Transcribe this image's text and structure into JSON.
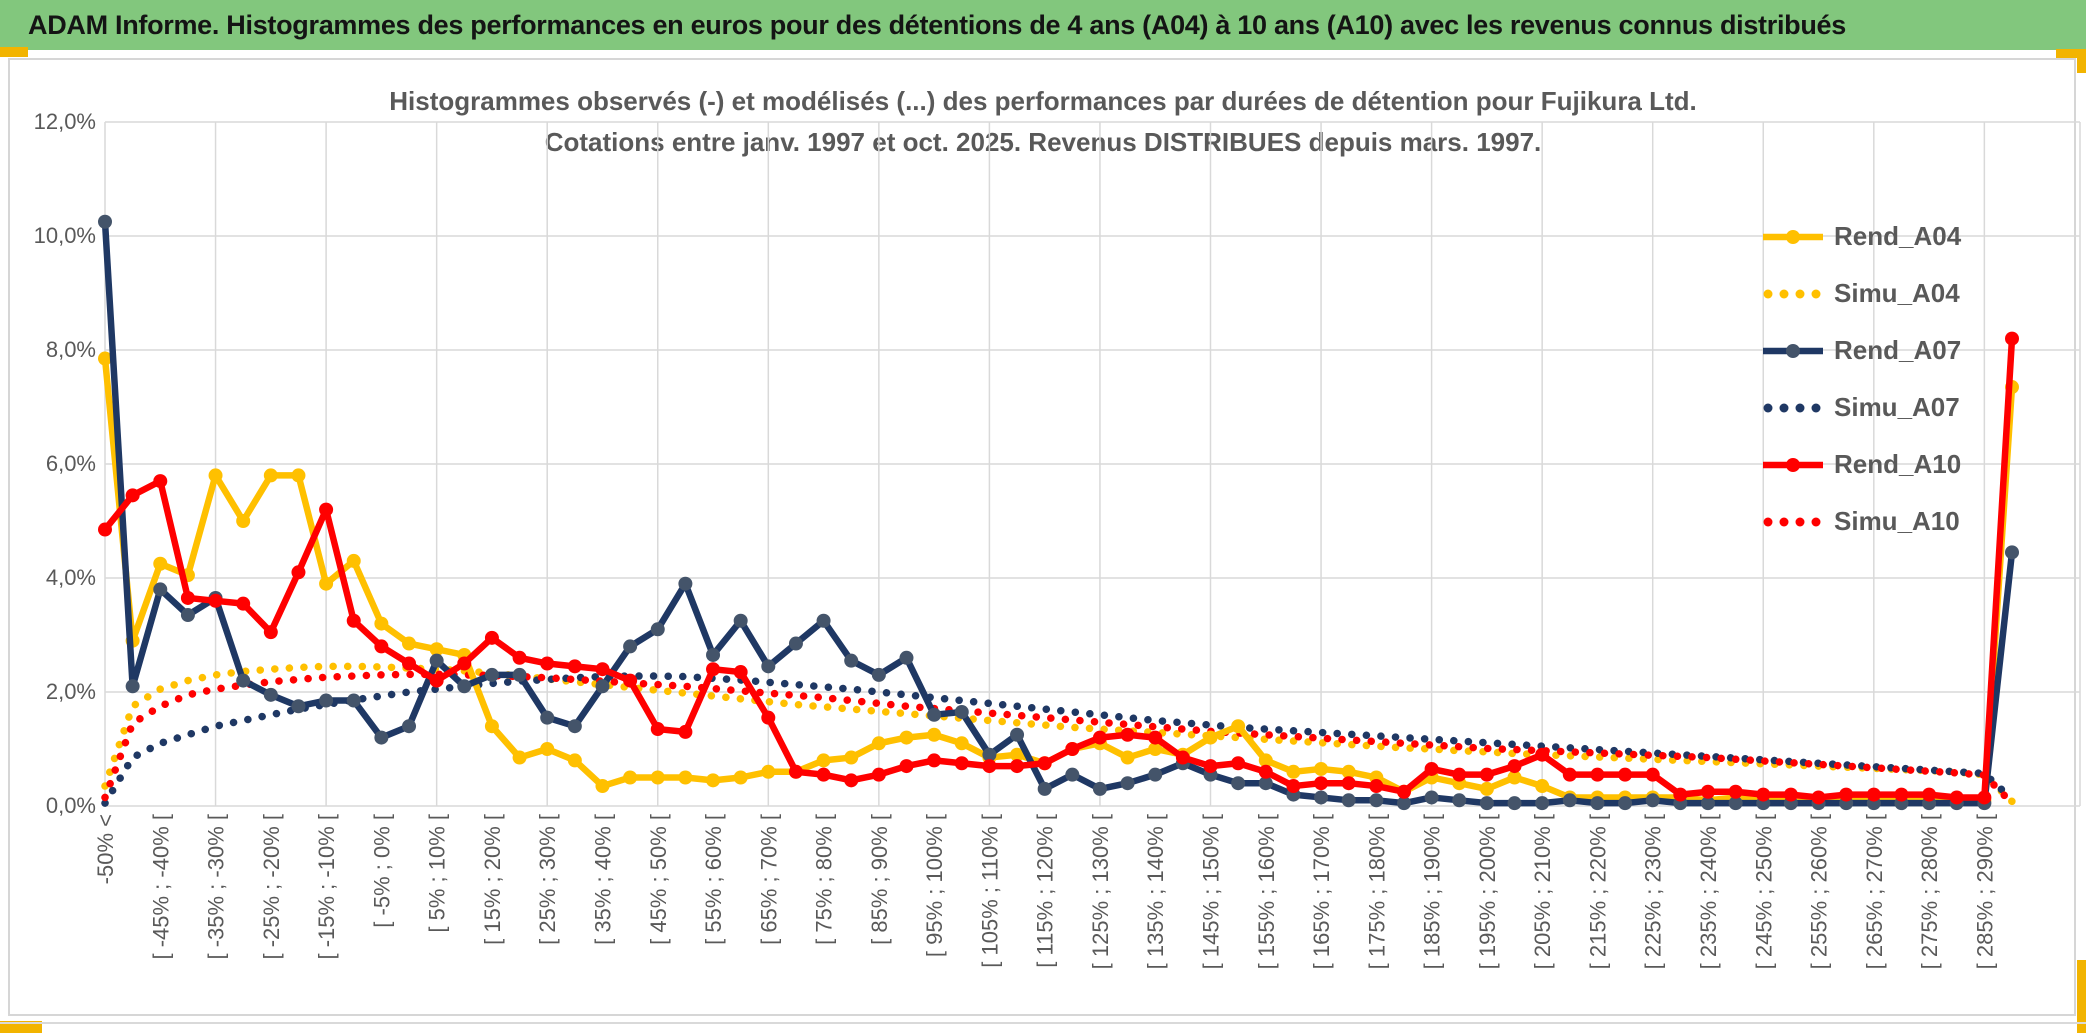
{
  "window": {
    "title": "ADAM Informe. Histogrammes des performances en euros pour des détentions de 4 ans (A04) à 10 ans (A10) avec les revenus connus distribués"
  },
  "accent_colors": {
    "header_green": "#82C77D",
    "gold_accent": "#F2B400",
    "grid_gray": "#D9D9D9",
    "axis_text_gray": "#595959"
  },
  "chart_data": {
    "type": "line",
    "title": "Histogrammes observés (-) et modélisés (...) des performances par durées de détention pour Fujikura Ltd.",
    "subtitle": "Cotations entre janv. 1997 et oct. 2025. Revenus DISTRIBUES depuis mars. 1997.",
    "ylabel": "",
    "xlabel": "",
    "ylim": [
      0,
      12
    ],
    "ytick_labels": [
      "0,0%",
      "2,0%",
      "4,0%",
      "6,0%",
      "8,0%",
      "10,0%",
      "12,0%"
    ],
    "grid": true,
    "legend_position": "right-inside",
    "n_bins": 70,
    "xtick_every_other_bin_starting_at_first": true,
    "xtick_labels": [
      "-50% <",
      "[ -45% ; -40% [",
      "[ -35% ; -30% [",
      "[ -25% ; -20% [",
      "[ -15% ; -10% [",
      "[ -5% ; 0% [",
      "[ 5% ; 10% [",
      "[ 15% ; 20% [",
      "[ 25% ; 30% [",
      "[ 35% ; 40% [",
      "[ 45% ; 50% [",
      "[ 55% ; 60% [",
      "[ 65% ; 70% [",
      "[ 75% ; 80% [",
      "[ 85% ; 90% [",
      "[ 95% ; 100% [",
      "[ 105% ; 110% [",
      "[ 115% ; 120% [",
      "[ 125% ; 130% [",
      "[ 135% ; 140% [",
      "[ 145% ; 150% [",
      "[ 155% ; 160% [",
      "[ 165% ; 170% [",
      "[ 175% ; 180% [",
      "[ 185% ; 190% [",
      "[ 195% ; 200% [",
      "[ 205% ; 210% [",
      "[ 215% ; 220% [",
      "[ 225% ; 230% [",
      "[ 235% ; 240% [",
      "[ 245% ; 250% [",
      "[ 255% ; 260% [",
      "[ 265% ; 270% [",
      "[ 275% ; 280% [",
      "[ 285% ; 290% ["
    ],
    "series": [
      {
        "name": "Simu_A04",
        "style": "dotted",
        "color": "#FFC000",
        "marker_color": "#FFC000",
        "values": [
          0.35,
          1.75,
          2.05,
          2.2,
          2.3,
          2.36,
          2.4,
          2.43,
          2.45,
          2.45,
          2.44,
          2.42,
          2.4,
          2.37,
          2.33,
          2.28,
          2.23,
          2.18,
          2.13,
          2.08,
          2.03,
          1.98,
          1.93,
          1.88,
          1.83,
          1.78,
          1.74,
          1.7,
          1.66,
          1.62,
          1.58,
          1.54,
          1.5,
          1.46,
          1.42,
          1.38,
          1.35,
          1.32,
          1.29,
          1.26,
          1.23,
          1.2,
          1.17,
          1.14,
          1.11,
          1.08,
          1.05,
          1.02,
          1.0,
          0.97,
          0.95,
          0.92,
          0.9,
          0.88,
          0.86,
          0.84,
          0.82,
          0.8,
          0.78,
          0.76,
          0.74,
          0.72,
          0.7,
          0.68,
          0.66,
          0.64,
          0.62,
          0.6,
          0.55,
          0.08
        ]
      },
      {
        "name": "Simu_A07",
        "style": "dotted",
        "color": "#1F3864",
        "marker_color": "#1F3864",
        "values": [
          0.05,
          0.85,
          1.1,
          1.25,
          1.4,
          1.5,
          1.6,
          1.7,
          1.78,
          1.86,
          1.93,
          2.0,
          2.05,
          2.1,
          2.15,
          2.19,
          2.22,
          2.25,
          2.27,
          2.28,
          2.28,
          2.27,
          2.24,
          2.21,
          2.17,
          2.13,
          2.09,
          2.05,
          2.0,
          1.95,
          1.9,
          1.85,
          1.8,
          1.75,
          1.7,
          1.65,
          1.6,
          1.55,
          1.5,
          1.46,
          1.42,
          1.38,
          1.35,
          1.32,
          1.29,
          1.26,
          1.23,
          1.2,
          1.17,
          1.14,
          1.11,
          1.08,
          1.05,
          1.02,
          0.99,
          0.96,
          0.93,
          0.9,
          0.87,
          0.84,
          0.81,
          0.78,
          0.75,
          0.72,
          0.69,
          0.66,
          0.63,
          0.6,
          0.57,
          0.12
        ]
      },
      {
        "name": "Simu_A10",
        "style": "dotted",
        "color": "#FF0000",
        "marker_color": "#FF0000",
        "values": [
          0.15,
          1.45,
          1.75,
          1.95,
          2.05,
          2.12,
          2.18,
          2.22,
          2.26,
          2.28,
          2.3,
          2.31,
          2.31,
          2.3,
          2.29,
          2.27,
          2.25,
          2.22,
          2.19,
          2.16,
          2.13,
          2.1,
          2.06,
          2.02,
          1.98,
          1.94,
          1.9,
          1.85,
          1.8,
          1.75,
          1.71,
          1.67,
          1.63,
          1.59,
          1.55,
          1.51,
          1.47,
          1.43,
          1.39,
          1.35,
          1.31,
          1.28,
          1.25,
          1.22,
          1.19,
          1.16,
          1.13,
          1.1,
          1.07,
          1.04,
          1.01,
          0.99,
          0.97,
          0.95,
          0.93,
          0.91,
          0.89,
          0.87,
          0.85,
          0.82,
          0.79,
          0.76,
          0.73,
          0.7,
          0.67,
          0.64,
          0.61,
          0.58,
          0.54,
          0.05
        ]
      },
      {
        "name": "Rend_A04",
        "style": "solid",
        "color": "#FFC000",
        "marker_color": "#FFC000",
        "values": [
          7.85,
          2.9,
          4.25,
          4.05,
          5.8,
          5.0,
          5.8,
          5.8,
          3.9,
          4.3,
          3.2,
          2.85,
          2.75,
          2.65,
          1.4,
          0.85,
          1.0,
          0.8,
          0.35,
          0.5,
          0.5,
          0.5,
          0.45,
          0.5,
          0.6,
          0.6,
          0.8,
          0.85,
          1.1,
          1.2,
          1.25,
          1.1,
          0.85,
          0.9,
          0.75,
          1.0,
          1.1,
          0.85,
          1.0,
          0.9,
          1.2,
          1.4,
          0.8,
          0.6,
          0.65,
          0.6,
          0.5,
          0.25,
          0.5,
          0.4,
          0.3,
          0.5,
          0.35,
          0.15,
          0.15,
          0.15,
          0.15,
          0.15,
          0.1,
          0.15,
          0.1,
          0.1,
          0.1,
          0.1,
          0.1,
          0.1,
          0.1,
          0.1,
          0.1,
          7.35
        ]
      },
      {
        "name": "Rend_A07",
        "style": "solid",
        "color": "#1F3864",
        "marker_color": "#44546A",
        "values": [
          10.25,
          2.1,
          3.8,
          3.35,
          3.65,
          2.2,
          1.95,
          1.75,
          1.85,
          1.85,
          1.2,
          1.4,
          2.55,
          2.1,
          2.3,
          2.3,
          1.55,
          1.4,
          2.1,
          2.8,
          3.1,
          3.9,
          2.65,
          3.25,
          2.45,
          2.85,
          3.25,
          2.55,
          2.3,
          2.6,
          1.6,
          1.65,
          0.9,
          1.25,
          0.3,
          0.55,
          0.3,
          0.4,
          0.55,
          0.75,
          0.55,
          0.4,
          0.4,
          0.2,
          0.15,
          0.1,
          0.1,
          0.05,
          0.15,
          0.1,
          0.05,
          0.05,
          0.05,
          0.1,
          0.05,
          0.05,
          0.1,
          0.05,
          0.05,
          0.05,
          0.05,
          0.05,
          0.05,
          0.05,
          0.05,
          0.05,
          0.05,
          0.05,
          0.05,
          4.45
        ]
      },
      {
        "name": "Rend_A10",
        "style": "solid",
        "color": "#FF0000",
        "marker_color": "#FF0000",
        "values": [
          4.85,
          5.45,
          5.7,
          3.65,
          3.6,
          3.55,
          3.05,
          4.1,
          5.2,
          3.25,
          2.8,
          2.5,
          2.2,
          2.5,
          2.95,
          2.6,
          2.5,
          2.45,
          2.4,
          2.2,
          1.35,
          1.3,
          2.4,
          2.35,
          1.55,
          0.6,
          0.55,
          0.45,
          0.55,
          0.7,
          0.8,
          0.75,
          0.7,
          0.7,
          0.75,
          1.0,
          1.2,
          1.25,
          1.2,
          0.85,
          0.7,
          0.75,
          0.6,
          0.35,
          0.4,
          0.4,
          0.35,
          0.25,
          0.65,
          0.55,
          0.55,
          0.7,
          0.9,
          0.55,
          0.55,
          0.55,
          0.55,
          0.2,
          0.25,
          0.25,
          0.2,
          0.2,
          0.15,
          0.2,
          0.2,
          0.2,
          0.2,
          0.15,
          0.15,
          8.2
        ]
      }
    ],
    "legend_order": [
      "Rend_A04",
      "Simu_A04",
      "Rend_A07",
      "Simu_A07",
      "Rend_A10",
      "Simu_A10"
    ]
  }
}
